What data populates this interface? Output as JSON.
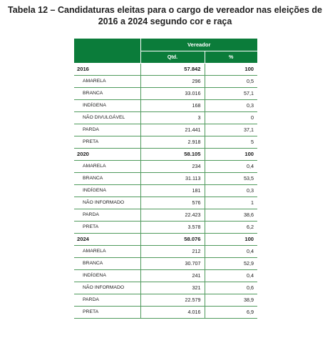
{
  "title_line1": "Tabela 12 – Candidaturas eleitas para o cargo de vereador nas eleições de",
  "title_line2": "2016 a 2024 segundo cor e raça",
  "header": {
    "group": "Vereador",
    "qtd": "Qtd.",
    "pct": "%"
  },
  "rows": [
    {
      "label": "2016",
      "qtd": "57.842",
      "pct": "100"
    },
    {
      "label": "AMARELA",
      "qtd": "296",
      "pct": "0,5"
    },
    {
      "label": "BRANCA",
      "qtd": "33.016",
      "pct": "57,1"
    },
    {
      "label": "INDÍGENA",
      "qtd": "168",
      "pct": "0,3"
    },
    {
      "label": "NÃO DIVULGÁVEL",
      "qtd": "3",
      "pct": "0"
    },
    {
      "label": "PARDA",
      "qtd": "21.441",
      "pct": "37,1"
    },
    {
      "label": "PRETA",
      "qtd": "2.918",
      "pct": "5"
    },
    {
      "label": "2020",
      "qtd": "58.105",
      "pct": "100"
    },
    {
      "label": "AMARELA",
      "qtd": "234",
      "pct": "0,4"
    },
    {
      "label": "BRANCA",
      "qtd": "31.113",
      "pct": "53,5"
    },
    {
      "label": "INDÍGENA",
      "qtd": "181",
      "pct": "0,3"
    },
    {
      "label": "NÃO INFORMADO",
      "qtd": "576",
      "pct": "1"
    },
    {
      "label": "PARDA",
      "qtd": "22.423",
      "pct": "38,6"
    },
    {
      "label": "PRETA",
      "qtd": "3.578",
      "pct": "6,2"
    },
    {
      "label": "2024",
      "qtd": "58.076",
      "pct": "100"
    },
    {
      "label": "AMARELA",
      "qtd": "212",
      "pct": "0,4"
    },
    {
      "label": "BRANCA",
      "qtd": "30.707",
      "pct": "52,9"
    },
    {
      "label": "INDÍGENA",
      "qtd": "241",
      "pct": "0,4"
    },
    {
      "label": "NÃO INFORMADO",
      "qtd": "321",
      "pct": "0,6"
    },
    {
      "label": "PARDA",
      "qtd": "22.579",
      "pct": "38,9"
    },
    {
      "label": "PRETA",
      "qtd": "4.016",
      "pct": "6,9"
    }
  ]
}
